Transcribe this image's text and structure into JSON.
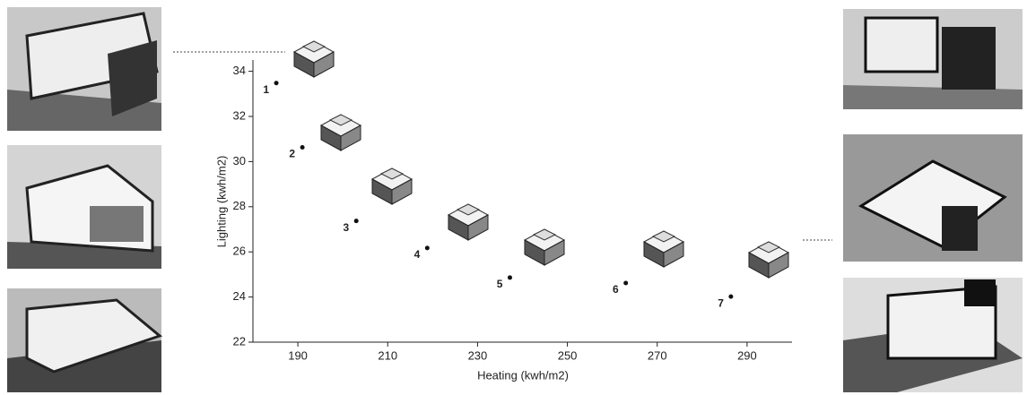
{
  "chart_data": {
    "type": "scatter",
    "x_label": "Heating (kwh/m2)",
    "y_label": "Lighting (kwh/m2)",
    "x": [
      185.2,
      191,
      203,
      218.8,
      237.2,
      263,
      286.4
    ],
    "series": [
      {
        "color": "#111111",
        "values": [
          33.48,
          30.63,
          27.37,
          26.17,
          24.86,
          24.62,
          24.02
        ],
        "point_labels": [
          "1",
          "2",
          "3",
          "4",
          "5",
          "6",
          "7"
        ]
      }
    ],
    "xlim": [
      180,
      300
    ],
    "ylim": [
      22,
      34.5
    ],
    "xticks": [
      190,
      210,
      230,
      250,
      270,
      290
    ],
    "yticks": [
      22,
      24,
      26,
      28,
      30,
      32,
      34
    ]
  }
}
